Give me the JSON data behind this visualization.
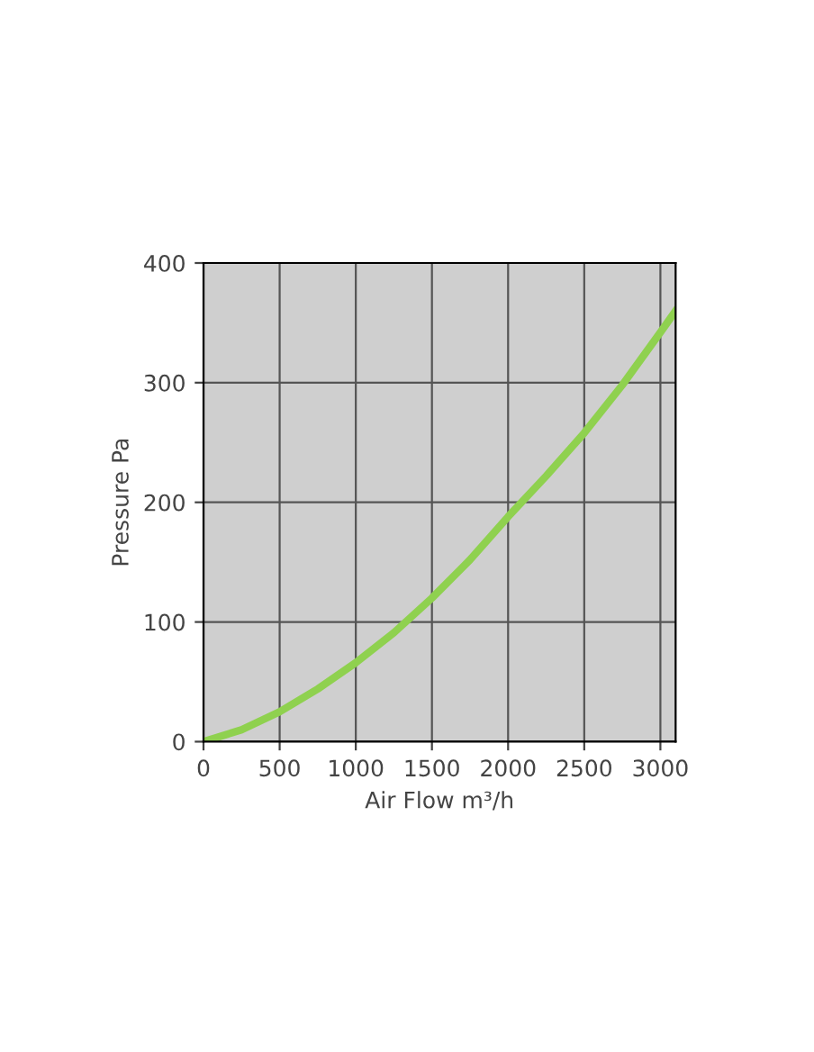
{
  "chart_data": {
    "type": "line",
    "xlabel": "Air Flow m³/h",
    "ylabel": "Pressure Pa",
    "x": [
      0,
      250,
      500,
      750,
      1000,
      1250,
      1500,
      1750,
      2000,
      2250,
      2500,
      2750,
      3000,
      3100
    ],
    "series": [
      {
        "color": "#8fd14f",
        "values": [
          0,
          10,
          25,
          44,
          66,
          91,
          120,
          152,
          188,
          222,
          258,
          298,
          342,
          360
        ]
      }
    ],
    "xlim": [
      0,
      3100
    ],
    "ylim": [
      0,
      400
    ],
    "xticks": [
      0,
      500,
      1000,
      1500,
      2000,
      2500,
      3000
    ],
    "yticks": [
      0,
      100,
      200,
      300,
      400
    ],
    "grid": true,
    "line_style": "solid"
  }
}
